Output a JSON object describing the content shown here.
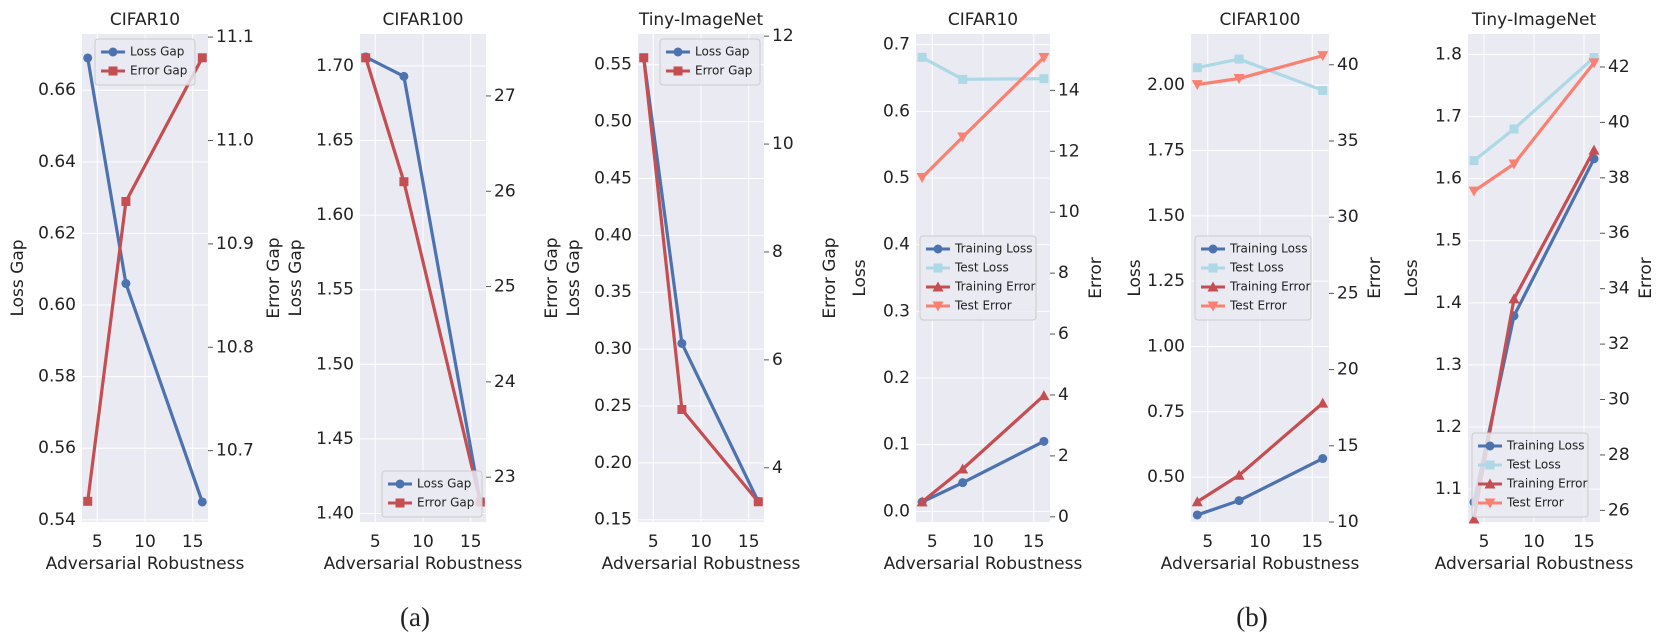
{
  "chart_data": [
    {
      "type": "line",
      "title": "CIFAR10",
      "xlabel": "Adversarial Robustness",
      "ylabel": "Loss Gap",
      "y2label": "Error Gap",
      "x": [
        4,
        8,
        16
      ],
      "xlim": [
        3.4,
        16.6
      ],
      "xticks": [
        5,
        10,
        15
      ],
      "ylim": [
        0.5394,
        0.6757
      ],
      "yticks": [
        0.54,
        0.56,
        0.58,
        {
          "value": 0.6,
          "label": "0.60"
        },
        0.62,
        0.64,
        0.66
      ],
      "y2lim": [
        10.631,
        11.103
      ],
      "y2ticks": [
        10.7,
        10.8,
        10.9,
        {
          "value": 11.0,
          "label": "11.0"
        },
        11.1
      ],
      "grid": true,
      "legend": "upper center",
      "series": [
        {
          "name": "Loss Gap",
          "color": "#4c72b0",
          "marker": "o",
          "values": [
            0.669,
            0.606,
            0.545
          ]
        },
        {
          "name": "Error Gap",
          "color": "#c44e52",
          "marker": "s",
          "axis": "y2",
          "values": [
            10.651,
            10.941,
            11.08
          ]
        }
      ]
    },
    {
      "type": "line",
      "title": "CIFAR100",
      "xlabel": "Adversarial Robustness",
      "ylabel": "Loss Gap",
      "y2label": "Error Gap",
      "x": [
        4,
        8,
        16
      ],
      "xlim": [
        3.4,
        16.6
      ],
      "xticks": [
        5,
        10,
        15
      ],
      "ylim": [
        1.3943,
        1.7214
      ],
      "yticks": [
        {
          "value": 1.4,
          "label": "1.40"
        },
        1.45,
        {
          "value": 1.5,
          "label": "1.50"
        },
        1.55,
        {
          "value": 1.6,
          "label": "1.60"
        },
        1.65,
        {
          "value": 1.7,
          "label": "1.70"
        }
      ],
      "y2lim": [
        22.53,
        27.65
      ],
      "y2ticks": [
        23,
        24,
        25,
        26,
        27
      ],
      "grid": true,
      "legend": "lower right",
      "series": [
        {
          "name": "Loss Gap",
          "color": "#4c72b0",
          "marker": "o",
          "values": [
            1.706,
            1.693,
            1.408
          ]
        },
        {
          "name": "Error Gap",
          "color": "#c44e52",
          "marker": "s",
          "axis": "y2",
          "values": [
            27.4,
            26.1,
            22.74
          ]
        }
      ]
    },
    {
      "type": "line",
      "title": "Tiny-ImageNet",
      "xlabel": "Adversarial Robustness",
      "ylabel": "Loss Gap",
      "y2label": "Error Gap",
      "x": [
        4,
        8,
        16
      ],
      "xlim": [
        3.4,
        16.6
      ],
      "xticks": [
        5,
        10,
        15
      ],
      "ylim": [
        0.148,
        0.577
      ],
      "yticks": [
        0.15,
        {
          "value": 0.2,
          "label": "0.20"
        },
        0.25,
        {
          "value": 0.3,
          "label": "0.30"
        },
        0.35,
        {
          "value": 0.4,
          "label": "0.40"
        },
        0.45,
        {
          "value": 0.5,
          "label": "0.50"
        },
        0.55
      ],
      "y2lim": [
        2.995,
        12.04
      ],
      "y2ticks": [
        4,
        6,
        8,
        10,
        12
      ],
      "grid": true,
      "legend": "upper right",
      "series": [
        {
          "name": "Loss Gap",
          "color": "#4c72b0",
          "marker": "o",
          "values": [
            0.556,
            0.305,
            0.166
          ]
        },
        {
          "name": "Error Gap",
          "color": "#c44e52",
          "marker": "s",
          "axis": "y2",
          "values": [
            11.6,
            5.08,
            3.37
          ]
        }
      ]
    },
    {
      "type": "line",
      "title": "CIFAR10",
      "xlabel": "Adversarial Robustness",
      "ylabel": "Loss",
      "y2label": "Error",
      "x": [
        4,
        8,
        16
      ],
      "xlim": [
        3.4,
        16.6
      ],
      "xticks": [
        5,
        10,
        15
      ],
      "ylim": [
        -0.016,
        0.716
      ],
      "yticks": [
        {
          "value": 0,
          "label": "0.0"
        },
        0.1,
        0.2,
        0.3,
        0.4,
        0.5,
        0.6,
        0.7
      ],
      "y2lim": [
        -0.17,
        15.85
      ],
      "y2ticks": [
        0,
        2,
        4,
        6,
        8,
        10,
        12,
        14
      ],
      "grid": true,
      "legend": "center left",
      "series": [
        {
          "name": "Training Loss",
          "color": "#4c72b0",
          "marker": "o",
          "values": [
            0.014,
            0.043,
            0.105
          ]
        },
        {
          "name": "Test Loss",
          "color": "#add8e6",
          "marker": "s",
          "values": [
            0.681,
            0.648,
            0.649
          ]
        },
        {
          "name": "Training Error",
          "color": "#c44e52",
          "marker": "^",
          "axis": "y2",
          "values": [
            0.49,
            1.57,
            3.98
          ]
        },
        {
          "name": "Test Error",
          "color": "#fa8072",
          "marker": "v",
          "axis": "y2",
          "values": [
            11.14,
            12.47,
            15.08
          ]
        }
      ]
    },
    {
      "type": "line",
      "title": "CIFAR100",
      "xlabel": "Adversarial Robustness",
      "ylabel": "Loss",
      "y2label": "Error",
      "x": [
        4,
        8,
        16
      ],
      "xlim": [
        3.4,
        16.6
      ],
      "xticks": [
        5,
        10,
        15
      ],
      "ylim": [
        0.328,
        2.196
      ],
      "yticks": [
        {
          "value": 0.5,
          "label": "0.50"
        },
        0.75,
        {
          "value": 1,
          "label": "1.00"
        },
        1.25,
        {
          "value": 1.5,
          "label": "1.50"
        },
        1.75,
        {
          "value": 2,
          "label": "2.00"
        }
      ],
      "y2lim": [
        10,
        42.02
      ],
      "y2ticks": [
        10,
        15,
        20,
        25,
        30,
        35,
        40
      ],
      "grid": true,
      "legend": "center left",
      "series": [
        {
          "name": "Training Loss",
          "color": "#4c72b0",
          "marker": "o",
          "values": [
            0.355,
            0.41,
            0.571
          ]
        },
        {
          "name": "Test Loss",
          "color": "#add8e6",
          "marker": "s",
          "values": [
            2.067,
            2.1,
            1.98
          ]
        },
        {
          "name": "Training Error",
          "color": "#c44e52",
          "marker": "^",
          "axis": "y2",
          "values": [
            11.33,
            13.07,
            17.8
          ]
        },
        {
          "name": "Test Error",
          "color": "#fa8072",
          "marker": "v",
          "axis": "y2",
          "values": [
            38.7,
            39.1,
            40.6
          ]
        }
      ]
    },
    {
      "type": "line",
      "title": "Tiny-ImageNet",
      "xlabel": "Adversarial Robustness",
      "ylabel": "Loss",
      "y2label": "Error",
      "x": [
        4,
        8,
        16
      ],
      "xlim": [
        3.4,
        16.6
      ],
      "xticks": [
        5,
        10,
        15
      ],
      "ylim": [
        1.047,
        1.833
      ],
      "yticks": [
        1.1,
        1.2,
        1.3,
        1.4,
        1.5,
        1.6,
        1.7,
        1.8
      ],
      "y2lim": [
        25.58,
        43.19
      ],
      "y2ticks": [
        26,
        28,
        30,
        32,
        34,
        36,
        38,
        40,
        42
      ],
      "grid": true,
      "legend": "lower left",
      "series": [
        {
          "name": "Training Loss",
          "color": "#4c72b0",
          "marker": "o",
          "values": [
            1.079,
            1.379,
            1.632
          ]
        },
        {
          "name": "Test Loss",
          "color": "#add8e6",
          "marker": "s",
          "values": [
            1.629,
            1.68,
            1.795
          ]
        },
        {
          "name": "Training Error",
          "color": "#c44e52",
          "marker": "^",
          "axis": "y2",
          "values": [
            25.69,
            33.63,
            39.0
          ]
        },
        {
          "name": "Test Error",
          "color": "#fa8072",
          "marker": "v",
          "axis": "y2",
          "values": [
            37.52,
            38.5,
            42.15
          ]
        }
      ]
    }
  ],
  "captions": [
    "(a)",
    "(b)"
  ]
}
